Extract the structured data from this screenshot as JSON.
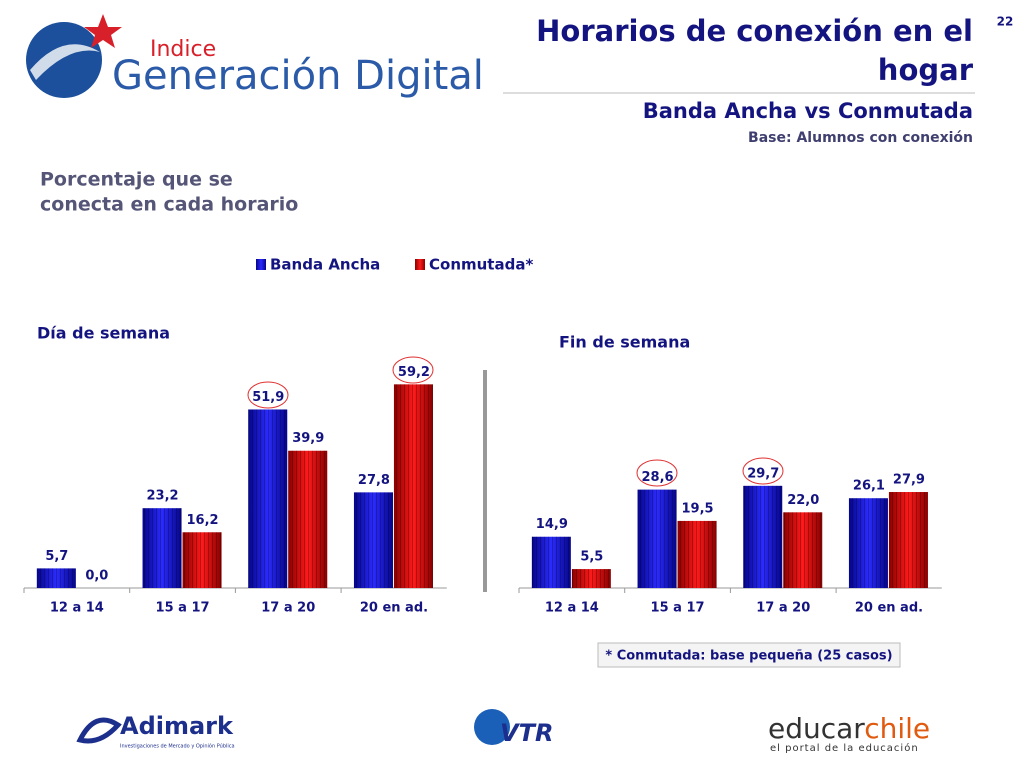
{
  "header": {
    "title_line1": "Horarios de conexión en el",
    "title_line2": "hogar",
    "subtitle": "Banda Ancha vs Conmutada",
    "base": "Base: Alumnos con conexión",
    "page": "22",
    "description_line1": "Porcentaje que se",
    "description_line2": "conecta en cada horario",
    "logo_small": "Indice",
    "logo_big": "Generación Digital"
  },
  "footer": {
    "note": "* Conmutada: base pequeña (25 casos)",
    "adimark": "Adimark",
    "adimark_sub": "Investigaciones de Mercado y Opinión Pública",
    "vtr": "VTR",
    "educar": "educar",
    "chile": "chile",
    "educar_sub": "el portal de la educación"
  },
  "chart_data": [
    {
      "type": "bar",
      "title": "Día de semana",
      "categories": [
        "12 a 14",
        "15 a 17",
        "17 a 20",
        "20 en ad."
      ],
      "series": [
        {
          "name": "Banda Ancha",
          "color": "#1414d8",
          "values": [
            5.7,
            23.2,
            51.9,
            27.8
          ],
          "value_labels": [
            "5,7",
            "23,2",
            "51,9",
            "27,8"
          ]
        },
        {
          "name": "Conmutada*",
          "color": "#e00000",
          "values": [
            0.0,
            16.2,
            39.9,
            59.2
          ],
          "value_labels": [
            "0,0",
            "16,2",
            "39,9",
            "59,2"
          ]
        }
      ]
    },
    {
      "type": "bar",
      "title": "Fin de semana",
      "categories": [
        "12 a 14",
        "15 a 17",
        "17 a 20",
        "20 en ad."
      ],
      "series": [
        {
          "color": "#1414d8",
          "values": [
            14.9,
            28.6,
            29.7,
            26.1
          ],
          "value_labels": [
            "14,9",
            "28,6",
            "29,7",
            "26,1"
          ]
        },
        {
          "color": "#e00000",
          "values": [
            5.5,
            19.5,
            22.0,
            27.9
          ],
          "value_labels": [
            "5,5",
            "19,5",
            "22,0",
            "27,9"
          ]
        }
      ]
    }
  ]
}
